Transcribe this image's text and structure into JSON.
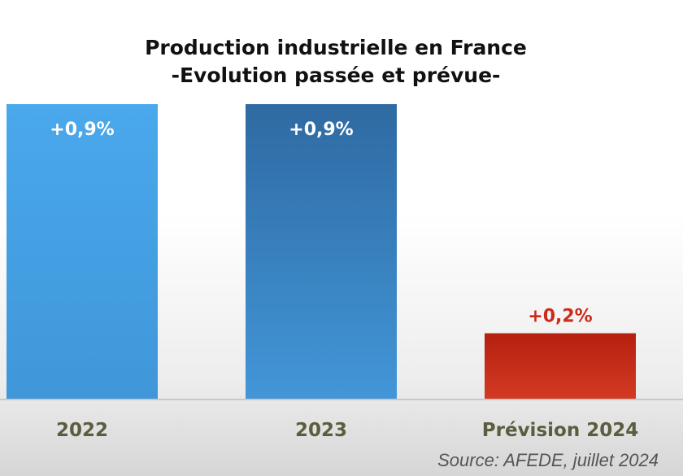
{
  "chart_data": {
    "type": "bar",
    "title": "Production industrielle en France",
    "subtitle": "-Evolution passée et prévue-",
    "categories": [
      "2022",
      "2023",
      "Prévision 2024"
    ],
    "values": [
      0.9,
      0.9,
      0.2
    ],
    "data_labels": [
      "+0,9%",
      "+0,9%",
      "+0,2%"
    ],
    "unit": "%",
    "ylim": [
      0,
      0.9
    ],
    "grid": false,
    "xlabel": "",
    "ylabel": "",
    "colors": [
      {
        "top": "#4aa8ec",
        "bottom": "#3f97d9",
        "label": "#ffffff"
      },
      {
        "top": "#2f6aa2",
        "bottom": "#4296d8",
        "label": "#ffffff"
      },
      {
        "top": "#b5200f",
        "bottom": "#d23a22",
        "label": "#cc2a1a"
      }
    ],
    "category_label_color": "#5c5c40",
    "source": "Source: AFEDE, juillet 2024"
  }
}
